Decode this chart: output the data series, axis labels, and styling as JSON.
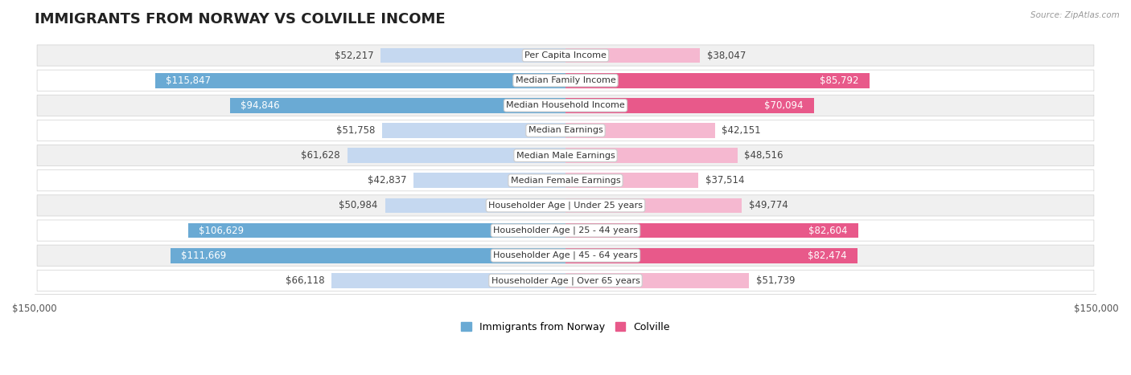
{
  "title": "IMMIGRANTS FROM NORWAY VS COLVILLE INCOME",
  "source": "Source: ZipAtlas.com",
  "categories": [
    "Per Capita Income",
    "Median Family Income",
    "Median Household Income",
    "Median Earnings",
    "Median Male Earnings",
    "Median Female Earnings",
    "Householder Age | Under 25 years",
    "Householder Age | 25 - 44 years",
    "Householder Age | 45 - 64 years",
    "Householder Age | Over 65 years"
  ],
  "norway_values": [
    52217,
    115847,
    94846,
    51758,
    61628,
    42837,
    50984,
    106629,
    111669,
    66118
  ],
  "colville_values": [
    38047,
    85792,
    70094,
    42151,
    48516,
    37514,
    49774,
    82604,
    82474,
    51739
  ],
  "norway_labels": [
    "$52,217",
    "$115,847",
    "$94,846",
    "$51,758",
    "$61,628",
    "$42,837",
    "$50,984",
    "$106,629",
    "$111,669",
    "$66,118"
  ],
  "colville_labels": [
    "$38,047",
    "$85,792",
    "$70,094",
    "$42,151",
    "$48,516",
    "$37,514",
    "$49,774",
    "$82,604",
    "$82,474",
    "$51,739"
  ],
  "norway_color_light": "#c5d8f0",
  "norway_color_dark": "#6aaad4",
  "colville_color_light": "#f5b8d0",
  "colville_color_dark": "#e8598a",
  "norway_legend_color": "#6aaad4",
  "colville_legend_color": "#e8598a",
  "axis_max": 150000,
  "background_color": "#ffffff",
  "row_bg_odd": "#f0f0f0",
  "row_bg_even": "#ffffff",
  "title_fontsize": 13,
  "label_fontsize": 8.5,
  "category_fontsize": 8,
  "norway_threshold": 80000,
  "colville_threshold": 70000
}
